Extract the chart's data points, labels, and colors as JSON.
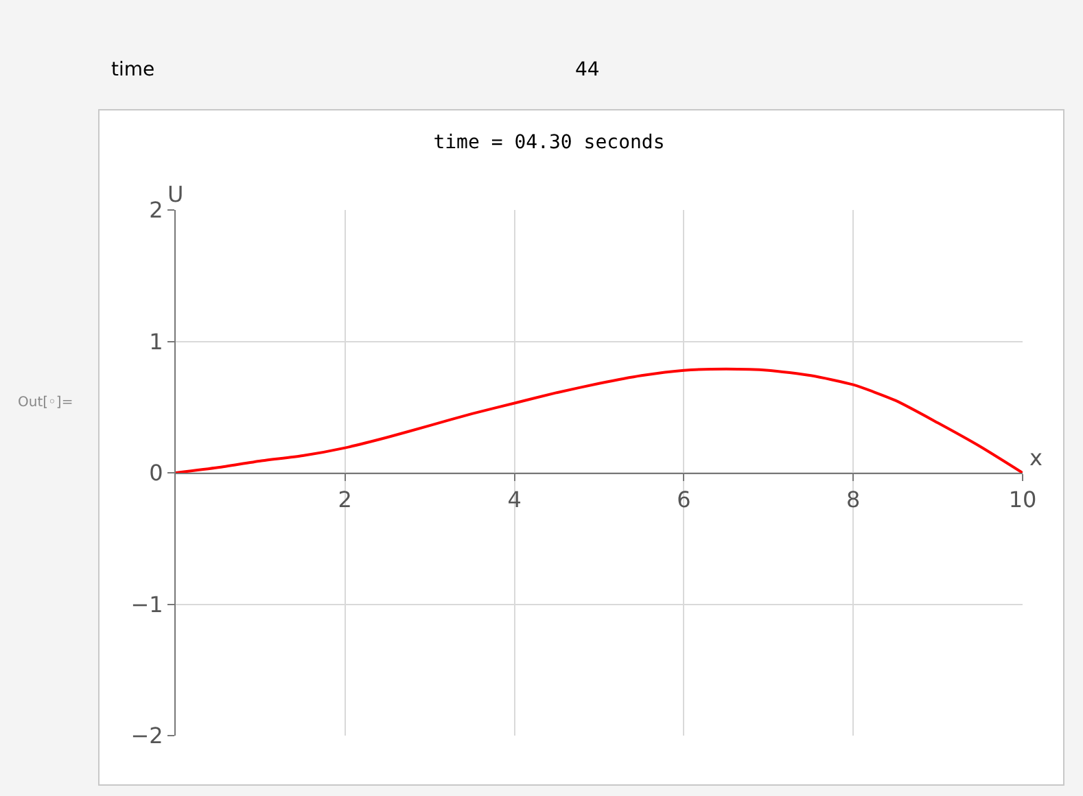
{
  "chart_data": {
    "type": "line",
    "title": "time = 04.30 seconds",
    "xlabel": "x",
    "ylabel": "U",
    "annotations": [
      "time",
      "44",
      "Out[◦]="
    ],
    "x": [
      0,
      0.5,
      1,
      1.5,
      2,
      2.5,
      3,
      3.5,
      4,
      4.5,
      5,
      5.5,
      6,
      6.5,
      7,
      7.5,
      8,
      8.5,
      9,
      9.5,
      10
    ],
    "series": [
      {
        "color": "#ff0000",
        "values": [
          0,
          0.04,
          0.09,
          0.13,
          0.19,
          0.27,
          0.36,
          0.45,
          0.53,
          0.61,
          0.68,
          0.74,
          0.78,
          0.79,
          0.78,
          0.74,
          0.67,
          0.55,
          0.38,
          0.2,
          0
        ]
      }
    ],
    "xlim": [
      0,
      10
    ],
    "ylim": [
      -2,
      2
    ],
    "xticks": [
      2,
      4,
      6,
      8,
      10
    ],
    "yticks": [
      {
        "value": -2,
        "label": "−2"
      },
      {
        "value": -1,
        "label": "−1"
      },
      0,
      1,
      2
    ],
    "grid": true,
    "marker": "none",
    "line_style": "solid"
  }
}
